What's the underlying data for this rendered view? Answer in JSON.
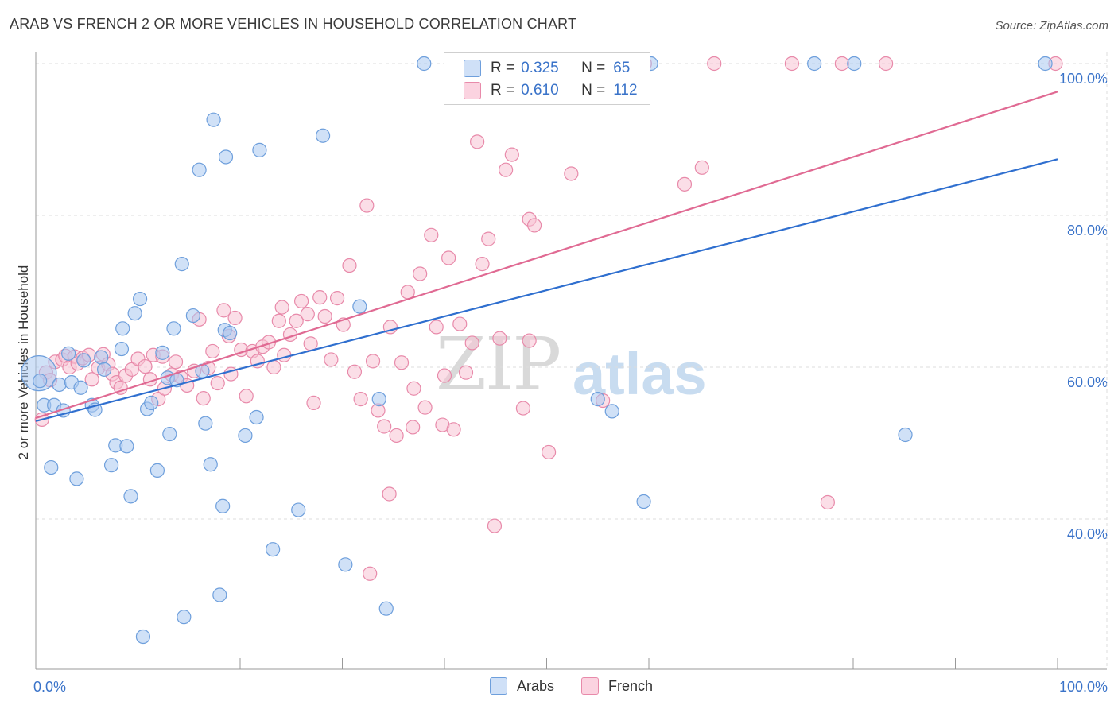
{
  "title": "ARAB VS FRENCH 2 OR MORE VEHICLES IN HOUSEHOLD CORRELATION CHART",
  "source": "Source: ZipAtlas.com",
  "watermark": {
    "zip": "ZIP",
    "atlas": "atlas"
  },
  "legend_top": {
    "rows": [
      {
        "r_label": "R =",
        "r_value": "0.325",
        "n_label": "N =",
        "n_value": "65",
        "color": "#a9c8f0"
      },
      {
        "r_label": "R =",
        "r_value": "0.610",
        "n_label": "N =",
        "n_value": "112",
        "color": "#f5b8cc"
      }
    ]
  },
  "legend_bottom": [
    {
      "label": "Arabs",
      "color": "#a9c8f0"
    },
    {
      "label": "French",
      "color": "#f5b8cc"
    }
  ],
  "colors": {
    "arab_fill": "#a9c8f0",
    "arab_stroke": "#6e9fdc",
    "arab_line": "#2f6fcf",
    "french_fill": "#f8c3d3",
    "french_stroke": "#e88aaa",
    "french_line": "#e06a93",
    "grid": "#dddddd",
    "tick_label": "#3a73c9",
    "axis": "#999999"
  },
  "chart_data": {
    "type": "scatter",
    "title": "ARAB VS FRENCH 2 OR MORE VEHICLES IN HOUSEHOLD CORRELATION CHART",
    "xlabel": "",
    "ylabel": "2 or more Vehicles in Household",
    "xlim": [
      0,
      100
    ],
    "ylim": [
      18,
      102
    ],
    "x_tick_labels": [
      "0.0%",
      "100.0%"
    ],
    "y_ticks": [
      40,
      60,
      80,
      100
    ],
    "y_tick_labels": [
      "40.0%",
      "60.0%",
      "80.0%",
      "100.0%"
    ],
    "grid": true,
    "legend": "bottom-center",
    "series": [
      {
        "name": "Arabs",
        "trendline": {
          "x": [
            0,
            100
          ],
          "y": [
            52.9,
            87.4
          ]
        },
        "points": [
          [
            0.3,
            59.2
          ],
          [
            0.4,
            58.2
          ],
          [
            0.8,
            55
          ],
          [
            1.5,
            46.8
          ],
          [
            1.8,
            55
          ],
          [
            2.3,
            57.7
          ],
          [
            2.7,
            54.3
          ],
          [
            3.2,
            61.8
          ],
          [
            3.5,
            58
          ],
          [
            4,
            45.3
          ],
          [
            4.4,
            57.3
          ],
          [
            4.7,
            60.9
          ],
          [
            5.5,
            55
          ],
          [
            5.8,
            54.4
          ],
          [
            6.4,
            61.3
          ],
          [
            6.7,
            59.7
          ],
          [
            7.4,
            47.1
          ],
          [
            7.8,
            49.7
          ],
          [
            8.4,
            62.4
          ],
          [
            8.5,
            65.1
          ],
          [
            8.9,
            49.6
          ],
          [
            9.3,
            43
          ],
          [
            9.7,
            67.1
          ],
          [
            10.2,
            69
          ],
          [
            10.5,
            24.5
          ],
          [
            10.9,
            54.5
          ],
          [
            11.3,
            55.3
          ],
          [
            11.9,
            46.4
          ],
          [
            12.4,
            61.9
          ],
          [
            12.9,
            58.6
          ],
          [
            13.1,
            51.2
          ],
          [
            13.5,
            65.1
          ],
          [
            13.8,
            58.3
          ],
          [
            14.3,
            73.6
          ],
          [
            14.5,
            27.1
          ],
          [
            15.4,
            66.8
          ],
          [
            16,
            86
          ],
          [
            16.3,
            59.5
          ],
          [
            16.6,
            52.6
          ],
          [
            17.1,
            47.2
          ],
          [
            17.4,
            92.6
          ],
          [
            18,
            30
          ],
          [
            18.3,
            41.7
          ],
          [
            18.5,
            64.9
          ],
          [
            18.6,
            87.7
          ],
          [
            19,
            64.5
          ],
          [
            20.5,
            51
          ],
          [
            21.6,
            53.4
          ],
          [
            21.9,
            88.6
          ],
          [
            23.2,
            36
          ],
          [
            25.7,
            41.2
          ],
          [
            28.1,
            90.5
          ],
          [
            30.3,
            34
          ],
          [
            31.7,
            68
          ],
          [
            33.6,
            55.8
          ],
          [
            34.3,
            28.2
          ],
          [
            38,
            100
          ],
          [
            55,
            55.8
          ],
          [
            56.4,
            54.2
          ],
          [
            59.5,
            42.3
          ],
          [
            60.2,
            100
          ],
          [
            76.2,
            100
          ],
          [
            80.1,
            100
          ],
          [
            85.1,
            51.1
          ],
          [
            98.8,
            100
          ]
        ],
        "sizes": {
          "0.3,59.2": "xl"
        }
      },
      {
        "name": "French",
        "trendline": {
          "x": [
            0,
            100
          ],
          "y": [
            53.3,
            96.3
          ]
        },
        "points": [
          [
            0.6,
            53.1
          ],
          [
            1,
            59.3
          ],
          [
            1.4,
            58.3
          ],
          [
            1.9,
            60.7
          ],
          [
            2.6,
            61
          ],
          [
            2.9,
            61.5
          ],
          [
            3.3,
            60
          ],
          [
            3.8,
            61.4
          ],
          [
            4.1,
            60.5
          ],
          [
            4.6,
            61.2
          ],
          [
            5.2,
            61.6
          ],
          [
            5.5,
            58.4
          ],
          [
            6.1,
            59.9
          ],
          [
            6.6,
            61.7
          ],
          [
            7.1,
            60.4
          ],
          [
            7.5,
            59.1
          ],
          [
            7.9,
            58
          ],
          [
            8.3,
            57.3
          ],
          [
            8.8,
            58.9
          ],
          [
            9.4,
            59.7
          ],
          [
            10,
            61.1
          ],
          [
            10.7,
            60.1
          ],
          [
            11.2,
            58.4
          ],
          [
            11.5,
            61.6
          ],
          [
            12,
            55.8
          ],
          [
            12.6,
            57.2
          ],
          [
            13.3,
            59
          ],
          [
            13.7,
            60.7
          ],
          [
            14.2,
            58.7
          ],
          [
            14.8,
            57.6
          ],
          [
            15.5,
            59.5
          ],
          [
            16,
            66.3
          ],
          [
            16.4,
            55.9
          ],
          [
            16.9,
            59.9
          ],
          [
            17.3,
            62.1
          ],
          [
            17.8,
            57.9
          ],
          [
            18.4,
            67.5
          ],
          [
            18.9,
            64.1
          ],
          [
            19.5,
            66.5
          ],
          [
            20.1,
            62.3
          ],
          [
            20.6,
            56.2
          ],
          [
            21.2,
            62.1
          ],
          [
            21.7,
            60.8
          ],
          [
            22.2,
            62.7
          ],
          [
            22.8,
            63.3
          ],
          [
            23.3,
            60
          ],
          [
            23.8,
            66.1
          ],
          [
            24.3,
            61.6
          ],
          [
            24.9,
            64.3
          ],
          [
            25.5,
            66.1
          ],
          [
            26,
            68.7
          ],
          [
            26.6,
            67
          ],
          [
            27.2,
            55.3
          ],
          [
            27.8,
            69.2
          ],
          [
            28.3,
            66.7
          ],
          [
            28.9,
            61
          ],
          [
            29.5,
            69.1
          ],
          [
            30.1,
            65.6
          ],
          [
            30.7,
            73.4
          ],
          [
            31.2,
            59.4
          ],
          [
            31.8,
            55.8
          ],
          [
            32.4,
            81.3
          ],
          [
            33,
            60.8
          ],
          [
            33.5,
            54.3
          ],
          [
            34.1,
            52.2
          ],
          [
            34.7,
            65.3
          ],
          [
            35.3,
            51
          ],
          [
            35.8,
            60.6
          ],
          [
            36.4,
            69.9
          ],
          [
            37,
            57.2
          ],
          [
            37.6,
            72.3
          ],
          [
            38.1,
            54.7
          ],
          [
            38.7,
            77.4
          ],
          [
            39.2,
            65.3
          ],
          [
            39.8,
            52.4
          ],
          [
            40.4,
            74.4
          ],
          [
            40.9,
            51.8
          ],
          [
            41.5,
            65.7
          ],
          [
            42.1,
            59.3
          ],
          [
            42.7,
            63.2
          ],
          [
            43.2,
            89.7
          ],
          [
            43.7,
            73.6
          ],
          [
            44.3,
            76.9
          ],
          [
            44.9,
            39.1
          ],
          [
            45.4,
            63.8
          ],
          [
            46,
            86
          ],
          [
            46.6,
            88
          ],
          [
            47.1,
            100
          ],
          [
            47.7,
            54.6
          ],
          [
            48.3,
            79.5
          ],
          [
            48.8,
            78.7
          ],
          [
            50.2,
            48.8
          ],
          [
            52.4,
            85.5
          ],
          [
            55.5,
            55.6
          ],
          [
            59.6,
            100
          ],
          [
            63.5,
            84.1
          ],
          [
            65.2,
            86.3
          ],
          [
            66.4,
            100
          ],
          [
            74,
            100
          ],
          [
            77.5,
            42.2
          ],
          [
            78.9,
            100
          ],
          [
            83.2,
            100
          ],
          [
            99.8,
            100
          ],
          [
            40,
            58.9
          ],
          [
            36.9,
            52.1
          ],
          [
            26.9,
            63.1
          ],
          [
            34.6,
            43.3
          ],
          [
            32.7,
            32.8
          ],
          [
            19.1,
            59.1
          ],
          [
            12.4,
            61.4
          ],
          [
            24.1,
            67.9
          ],
          [
            48.3,
            63.5
          ]
        ]
      }
    ]
  }
}
